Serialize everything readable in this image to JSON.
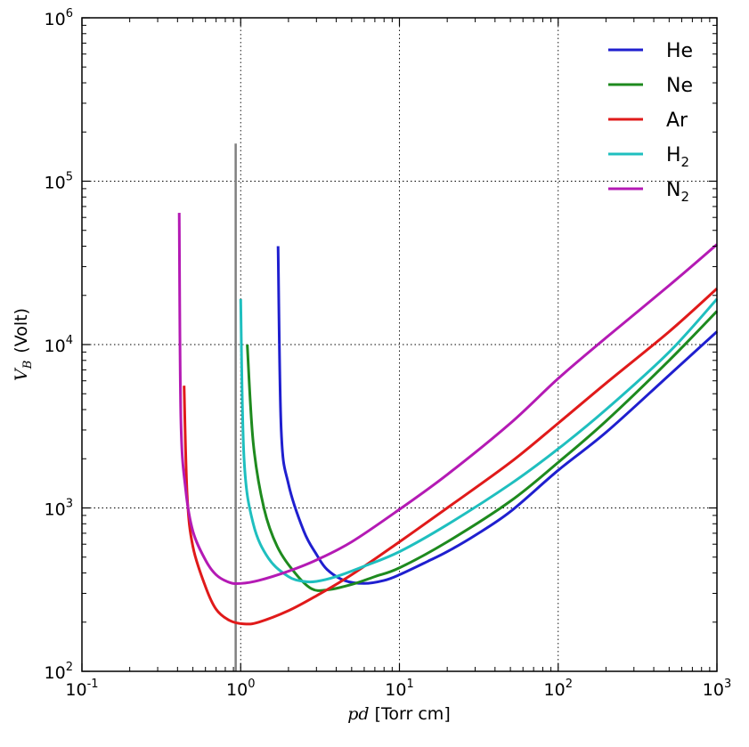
{
  "chart_data": {
    "type": "line",
    "x_scale": "log",
    "y_scale": "log",
    "xlim": [
      0.1,
      1000
    ],
    "ylim": [
      100,
      1000000
    ],
    "grid": "dotted, at major ticks",
    "legend_position": "top-right",
    "xlabel": {
      "italic": "pd",
      "rest": " [Torr cm]"
    },
    "ylabel": {
      "italic": "V",
      "subscript": "B",
      "rest": "(Volt)"
    },
    "xticks": [
      {
        "base": "10",
        "exp": "-1"
      },
      {
        "base": "10",
        "exp": "0"
      },
      {
        "base": "10",
        "exp": "1"
      },
      {
        "base": "10",
        "exp": "2"
      },
      {
        "base": "10",
        "exp": "3"
      }
    ],
    "yticks": [
      {
        "base": "10",
        "exp": "2"
      },
      {
        "base": "10",
        "exp": "3"
      },
      {
        "base": "10",
        "exp": "4"
      },
      {
        "base": "10",
        "exp": "5"
      },
      {
        "base": "10",
        "exp": "6"
      }
    ],
    "vertical_line": {
      "x": 0.93,
      "y_top": 170000,
      "color": "#808080"
    },
    "series": [
      {
        "name": "He",
        "base": "He",
        "sub": "",
        "color": "#1f1fcf",
        "points": [
          [
            1.72,
            40000
          ],
          [
            1.8,
            3000
          ],
          [
            2,
            1400
          ],
          [
            2.5,
            720
          ],
          [
            3,
            520
          ],
          [
            3.5,
            420
          ],
          [
            4.5,
            360
          ],
          [
            6,
            345
          ],
          [
            8,
            360
          ],
          [
            10,
            390
          ],
          [
            15,
            470
          ],
          [
            20,
            540
          ],
          [
            30,
            680
          ],
          [
            50,
            950
          ],
          [
            100,
            1700
          ],
          [
            200,
            2900
          ],
          [
            500,
            6500
          ],
          [
            1000,
            12000
          ]
        ]
      },
      {
        "name": "Ne",
        "base": "Ne",
        "sub": "",
        "color": "#1e8a1e",
        "points": [
          [
            1.1,
            10000
          ],
          [
            1.2,
            2500
          ],
          [
            1.4,
            1000
          ],
          [
            1.7,
            580
          ],
          [
            2.2,
            400
          ],
          [
            2.8,
            320
          ],
          [
            3.5,
            315
          ],
          [
            5,
            340
          ],
          [
            7,
            380
          ],
          [
            10,
            430
          ],
          [
            20,
            620
          ],
          [
            50,
            1100
          ],
          [
            100,
            1900
          ],
          [
            200,
            3400
          ],
          [
            500,
            8000
          ],
          [
            1000,
            16000
          ]
        ]
      },
      {
        "name": "Ar",
        "base": "Ar",
        "sub": "",
        "color": "#e01a1a",
        "points": [
          [
            0.44,
            5600
          ],
          [
            0.46,
            1200
          ],
          [
            0.5,
            580
          ],
          [
            0.6,
            330
          ],
          [
            0.7,
            240
          ],
          [
            0.85,
            205
          ],
          [
            1.05,
            195
          ],
          [
            1.3,
            200
          ],
          [
            2,
            235
          ],
          [
            3,
            290
          ],
          [
            5,
            390
          ],
          [
            10,
            620
          ],
          [
            20,
            1000
          ],
          [
            50,
            1900
          ],
          [
            100,
            3300
          ],
          [
            200,
            5800
          ],
          [
            500,
            12000
          ],
          [
            1000,
            22000
          ]
        ]
      },
      {
        "name": "H2",
        "base": "H",
        "sub": "2",
        "color": "#1fbfbf",
        "points": [
          [
            1.0,
            19000
          ],
          [
            1.05,
            2000
          ],
          [
            1.2,
            800
          ],
          [
            1.5,
            490
          ],
          [
            2,
            380
          ],
          [
            2.5,
            355
          ],
          [
            3,
            355
          ],
          [
            4,
            380
          ],
          [
            6,
            440
          ],
          [
            10,
            540
          ],
          [
            20,
            790
          ],
          [
            50,
            1400
          ],
          [
            100,
            2300
          ],
          [
            200,
            4000
          ],
          [
            500,
            9000
          ],
          [
            1000,
            19000
          ]
        ]
      },
      {
        "name": "N2",
        "base": "N",
        "sub": "2",
        "color": "#b41ab4",
        "points": [
          [
            0.41,
            64000
          ],
          [
            0.42,
            3500
          ],
          [
            0.45,
            1300
          ],
          [
            0.5,
            720
          ],
          [
            0.6,
            480
          ],
          [
            0.7,
            390
          ],
          [
            0.85,
            350
          ],
          [
            1.0,
            345
          ],
          [
            1.3,
            360
          ],
          [
            2,
            410
          ],
          [
            3,
            480
          ],
          [
            5,
            620
          ],
          [
            10,
            980
          ],
          [
            20,
            1600
          ],
          [
            50,
            3300
          ],
          [
            100,
            6200
          ],
          [
            200,
            11000
          ],
          [
            500,
            23000
          ],
          [
            1000,
            41000
          ]
        ]
      }
    ]
  }
}
